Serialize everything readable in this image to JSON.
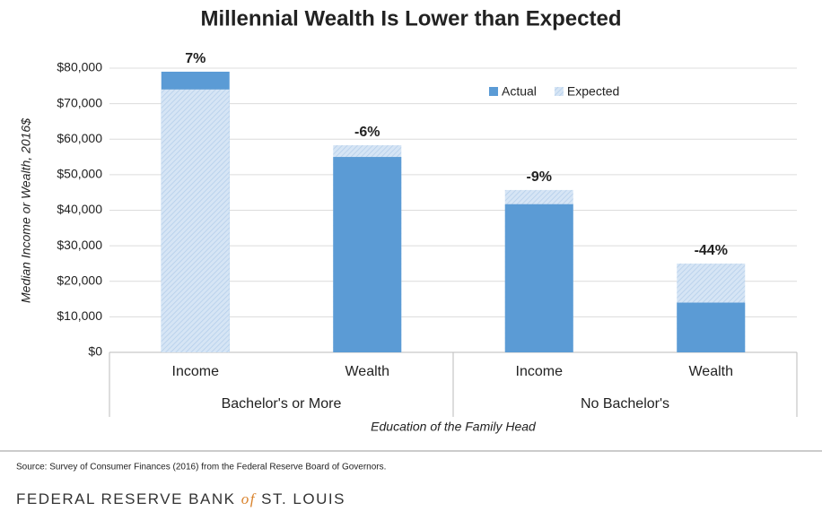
{
  "chart_data": {
    "type": "overlap_bar",
    "title": "Millennial Wealth Is Lower than Expected",
    "y_label": "Median Income or Wealth, 2016$",
    "x_label": "Education of the Family Head",
    "groups": [
      {
        "name": "Bachelor's or More",
        "categories": [
          "Income",
          "Wealth"
        ]
      },
      {
        "name": "No Bachelor's",
        "categories": [
          "Income",
          "Wealth"
        ]
      }
    ],
    "series": [
      {
        "name": "Actual",
        "color": "#5b9bd5",
        "values": [
          79000,
          55000,
          41700,
          14000
        ]
      },
      {
        "name": "Expected",
        "color": "#c9dcf1",
        "hatch": true,
        "values": [
          74000,
          58300,
          45700,
          25000
        ]
      }
    ],
    "annotations": [
      "7%",
      "-6%",
      "-9%",
      "-44%"
    ],
    "ylim": [
      0,
      80000
    ],
    "yticks": [
      {
        "value": 0,
        "label": "$0"
      },
      {
        "value": 10000,
        "label": "$10,000"
      },
      {
        "value": 20000,
        "label": "$20,000"
      },
      {
        "value": 30000,
        "label": "$30,000"
      },
      {
        "value": 40000,
        "label": "$40,000"
      },
      {
        "value": 50000,
        "label": "$50,000"
      },
      {
        "value": 60000,
        "label": "$60,000"
      },
      {
        "value": 70000,
        "label": "$70,000"
      },
      {
        "value": 80000,
        "label": "$80,000"
      }
    ],
    "grid": true,
    "legend_position": "upper right"
  },
  "source": "Source: Survey of Consumer Finances (2016) from the Federal Reserve Board of Governors.",
  "footer": [
    "FEDERAL RESERVE BANK ",
    "of",
    " ST. LOUIS"
  ]
}
